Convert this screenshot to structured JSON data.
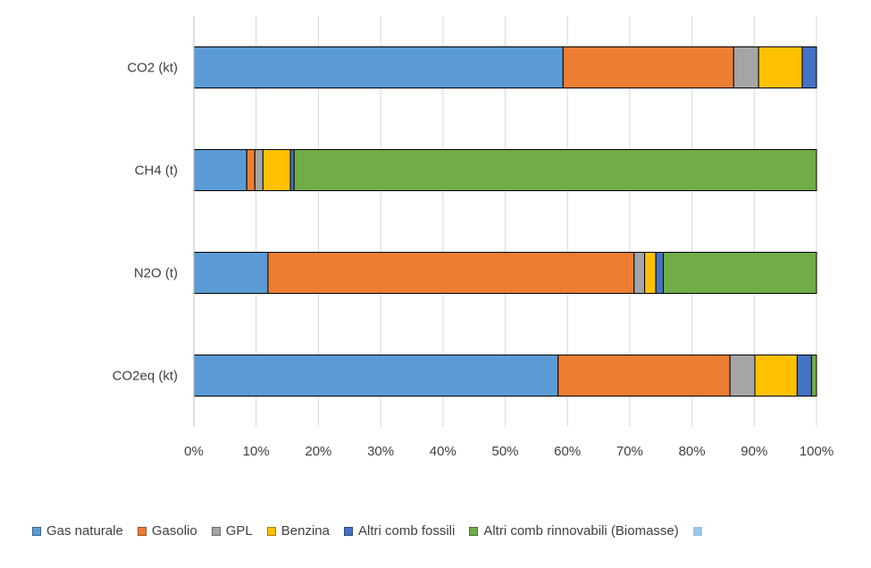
{
  "chart_data": {
    "type": "bar",
    "orientation": "horizontal",
    "stacked": "percent",
    "categories": [
      "CO2 (kt)",
      "CH4 (t)",
      "N2O (t)",
      "CO2eq (kt)"
    ],
    "x_ticks": [
      "0%",
      "10%",
      "20%",
      "30%",
      "40%",
      "50%",
      "60%",
      "70%",
      "80%",
      "90%",
      "100%"
    ],
    "xlim": [
      0,
      100
    ],
    "grid": "vertical",
    "legend_position": "bottom",
    "series": [
      {
        "name": "Gas naturale",
        "color": "#5B9BD5",
        "values": [
          59.3,
          8.5,
          11.9,
          58.5
        ]
      },
      {
        "name": "Gasolio",
        "color": "#ED7D31",
        "values": [
          27.4,
          1.3,
          58.8,
          27.6
        ]
      },
      {
        "name": "GPL",
        "color": "#A5A5A5",
        "values": [
          4.0,
          1.3,
          1.7,
          4.0
        ]
      },
      {
        "name": "Benzina",
        "color": "#FFC000",
        "values": [
          7.0,
          4.4,
          1.8,
          6.8
        ]
      },
      {
        "name": "Altri comb fossili",
        "color": "#4472C4",
        "values": [
          2.3,
          0.6,
          1.2,
          2.3
        ]
      },
      {
        "name": "Altri comb rinnovabili (Biomasse)",
        "color": "#70AD47",
        "values": [
          0.0,
          83.9,
          24.6,
          0.8
        ]
      },
      {
        "name": "",
        "color": "#9DC3E6",
        "values": [
          0,
          0,
          0,
          0
        ]
      }
    ]
  }
}
